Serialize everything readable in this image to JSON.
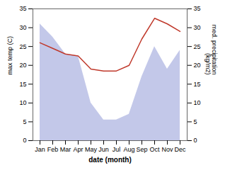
{
  "chart_data": {
    "type": "line",
    "xlabel": "date (month)",
    "ylabel": "max temp (C)",
    "y2label": "med. precipitation\n(kg/m2)",
    "categories": [
      "Jan",
      "Feb",
      "Mar",
      "Apr",
      "May",
      "Jun",
      "Jul",
      "Aug",
      "Sep",
      "Oct",
      "Nov",
      "Dec"
    ],
    "series": [
      {
        "type": "area",
        "color": "#aab0e0",
        "values": [
          31,
          27.5,
          23,
          22.5,
          10,
          5.5,
          5.5,
          7,
          17,
          25,
          19,
          24
        ]
      },
      {
        "type": "line",
        "color": "#c0392b",
        "values": [
          26,
          24.5,
          23,
          22.5,
          19,
          18.5,
          18.5,
          20,
          27,
          32.5,
          31,
          29
        ]
      }
    ],
    "ylim": [
      0,
      35
    ],
    "yticks": [
      0,
      5,
      10,
      15,
      20,
      25,
      30,
      35
    ],
    "y2lim": [
      0,
      35
    ],
    "y2ticks": [
      0,
      5,
      10,
      15,
      20,
      25,
      30,
      35
    ],
    "grid": false
  }
}
